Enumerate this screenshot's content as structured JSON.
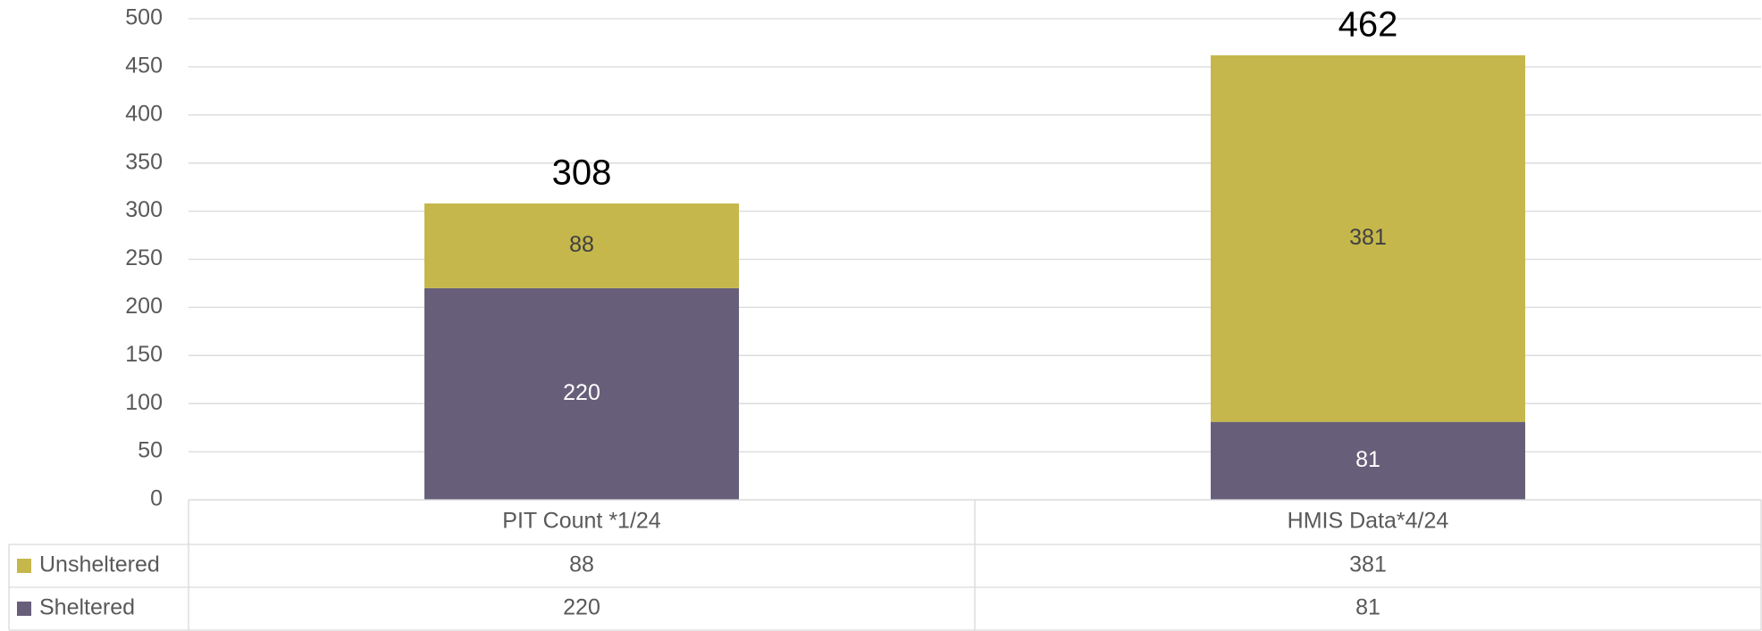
{
  "chart_data": {
    "type": "stacked_bar",
    "categories": [
      "PIT Count *1/24",
      "HMIS Data*4/24"
    ],
    "series": [
      {
        "name": "Sheltered",
        "color": "#675f7a",
        "values": [
          220,
          81
        ]
      },
      {
        "name": "Unsheltered",
        "color": "#c5b74b",
        "values": [
          88,
          381
        ]
      }
    ],
    "total_labels": [
      308,
      462
    ],
    "ylim": [
      0,
      500
    ],
    "yticks": [
      0,
      50,
      100,
      150,
      200,
      250,
      300,
      350,
      400,
      450,
      500
    ],
    "grid": true,
    "data_table": true
  }
}
